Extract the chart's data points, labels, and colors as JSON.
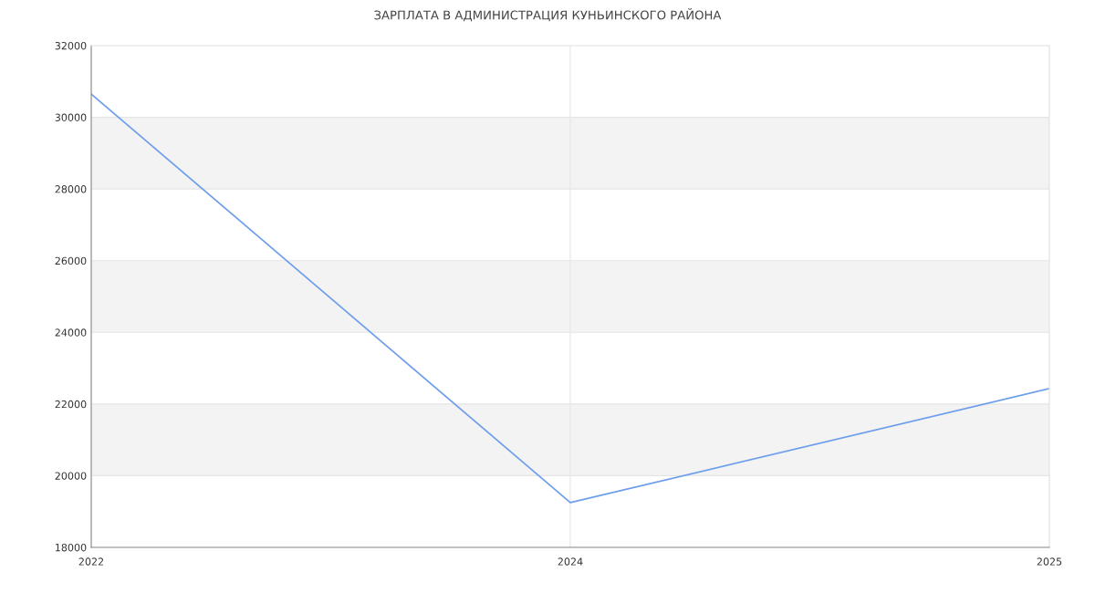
{
  "chart_data": {
    "type": "line",
    "title": "ЗАРПЛАТА В АДМИНИСТРАЦИЯ КУНЬИНСКОГО РАЙОНА",
    "categories": [
      "2022",
      "2024",
      "2025"
    ],
    "series": [
      {
        "color": "#6d9eeb",
        "values": [
          30650,
          19250,
          22430
        ]
      }
    ],
    "ylim": [
      18000,
      32000
    ],
    "yticks": [
      18000,
      20000,
      22000,
      24000,
      26000,
      28000,
      30000,
      32000
    ],
    "grid": true,
    "marker": "none",
    "line_style": "solid"
  }
}
